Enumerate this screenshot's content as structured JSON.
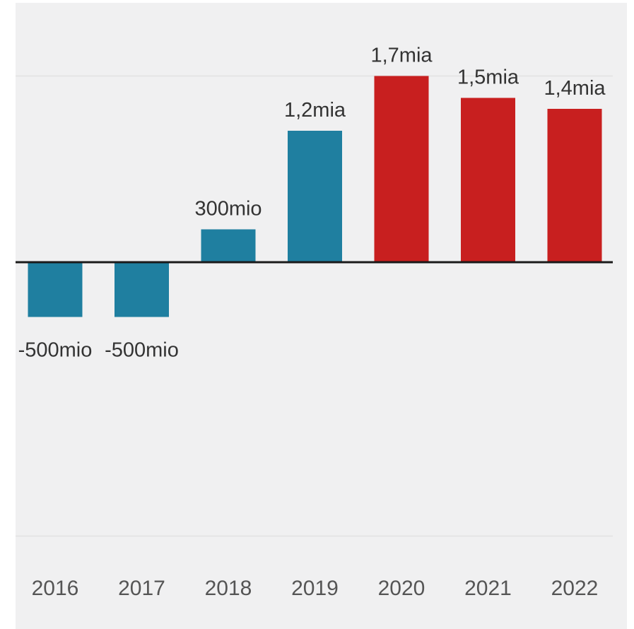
{
  "chart_data": {
    "type": "bar",
    "categories": [
      "2016",
      "2017",
      "2018",
      "2019",
      "2020",
      "2021",
      "2022"
    ],
    "values": [
      -0.5,
      -0.5,
      0.3,
      1.2,
      1.7,
      1.5,
      1.4
    ],
    "value_labels": [
      "-500mio",
      "-500mio",
      "300mio",
      "1,2mia",
      "1,7mia",
      "1,5mia",
      "1,4mia"
    ],
    "bar_colors": [
      "#1f7fa0",
      "#1f7fa0",
      "#1f7fa0",
      "#1f7fa0",
      "#c81f1f",
      "#c81f1f",
      "#c81f1f"
    ],
    "title": "",
    "xlabel": "",
    "ylabel": "",
    "ylim": [
      -2.5,
      1.7
    ],
    "grid": true,
    "legend": "none"
  },
  "colors": {
    "background": "#f0f0f1",
    "zero_line": "#1a1a1a",
    "gridline": "#e2e2e2"
  }
}
